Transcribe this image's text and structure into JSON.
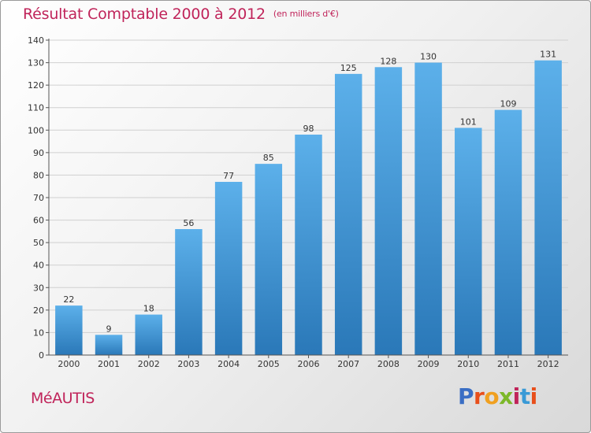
{
  "header": {
    "title": "Résultat Comptable 2000 à 2012",
    "subtitle": "(en milliers d'€)"
  },
  "footer": {
    "commune": "MéAUTIS",
    "logo": {
      "text": "Proxiti",
      "letters": [
        "P",
        "r",
        "o",
        "x",
        "i",
        "t",
        "i"
      ],
      "colors": [
        "#3a6ec4",
        "#e84f1b",
        "#f0a020",
        "#7cb829",
        "#c0245a",
        "#3a9ad6",
        "#e84f1b"
      ]
    }
  },
  "colors": {
    "bar_light": "#5cb0ea",
    "bar_dark": "#2a78b8",
    "axis": "#555555",
    "grid": "#d0d0d0"
  },
  "chart_data": {
    "type": "bar",
    "categories": [
      "2000",
      "2001",
      "2002",
      "2003",
      "2004",
      "2005",
      "2006",
      "2007",
      "2008",
      "2009",
      "2010",
      "2011",
      "2012"
    ],
    "values": [
      22,
      9,
      18,
      56,
      77,
      85,
      98,
      125,
      128,
      130,
      101,
      109,
      131
    ],
    "ylim": [
      0,
      140
    ],
    "yticks": [
      0,
      10,
      20,
      30,
      40,
      50,
      60,
      70,
      80,
      90,
      100,
      110,
      120,
      130,
      140
    ],
    "grid": true,
    "data_labels": true
  }
}
